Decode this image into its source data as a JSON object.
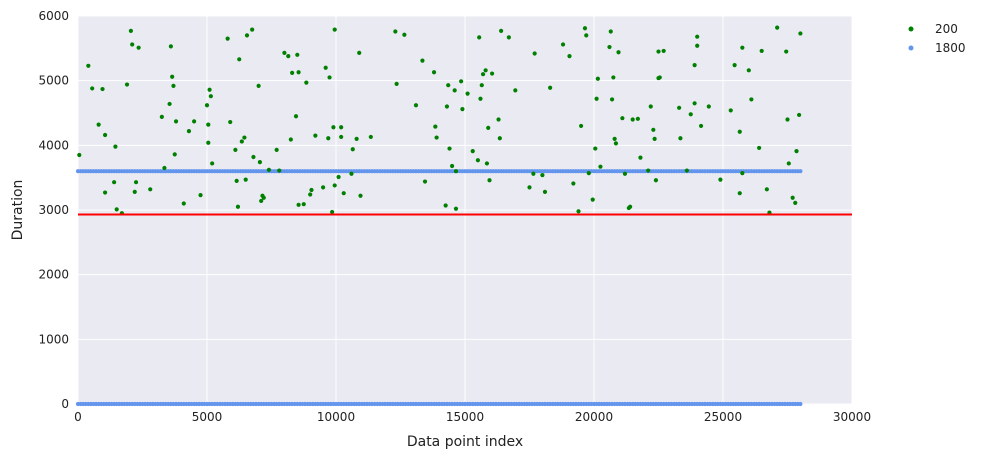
{
  "chart_data": {
    "type": "scatter",
    "xlabel": "Data point index",
    "ylabel": "Duration",
    "xlim": [
      0,
      30000
    ],
    "ylim": [
      0,
      6000
    ],
    "xticks": [
      "0",
      "5000",
      "10000",
      "15000",
      "20000",
      "25000",
      "30000"
    ],
    "yticks": [
      "0",
      "1000",
      "2000",
      "3000",
      "4000",
      "5000",
      "6000"
    ],
    "grid": true,
    "legend_position": "outside-top-right",
    "series": [
      {
        "name": "200",
        "color": "#008000",
        "points": [
          [
            50,
            3850
          ],
          [
            400,
            5230
          ],
          [
            550,
            4880
          ],
          [
            800,
            4320
          ],
          [
            950,
            4870
          ],
          [
            1050,
            4160
          ],
          [
            1050,
            3270
          ],
          [
            1400,
            3430
          ],
          [
            1450,
            3980
          ],
          [
            1500,
            3010
          ],
          [
            1700,
            2950
          ],
          [
            1900,
            4940
          ],
          [
            2050,
            5770
          ],
          [
            2100,
            5560
          ],
          [
            2200,
            3280
          ],
          [
            2250,
            3430
          ],
          [
            2350,
            5510
          ],
          [
            2800,
            3320
          ],
          [
            3250,
            4440
          ],
          [
            3350,
            3650
          ],
          [
            3550,
            4640
          ],
          [
            3600,
            5530
          ],
          [
            3650,
            5060
          ],
          [
            3700,
            4920
          ],
          [
            3800,
            4370
          ],
          [
            3750,
            3860
          ],
          [
            4100,
            3100
          ],
          [
            4300,
            4220
          ],
          [
            4500,
            4370
          ],
          [
            4750,
            3230
          ],
          [
            5000,
            4620
          ],
          [
            5050,
            4320
          ],
          [
            5100,
            4860
          ],
          [
            5150,
            4760
          ],
          [
            5200,
            3720
          ],
          [
            5050,
            4040
          ],
          [
            5800,
            5650
          ],
          [
            5900,
            4360
          ],
          [
            6100,
            3930
          ],
          [
            6150,
            3450
          ],
          [
            6200,
            3050
          ],
          [
            6250,
            5330
          ],
          [
            6350,
            4060
          ],
          [
            6450,
            4120
          ],
          [
            6550,
            5700
          ],
          [
            6500,
            3470
          ],
          [
            6750,
            5790
          ],
          [
            6800,
            3820
          ],
          [
            7000,
            4920
          ],
          [
            7050,
            3740
          ],
          [
            7100,
            3140
          ],
          [
            7200,
            3190
          ],
          [
            7150,
            3220
          ],
          [
            7400,
            3620
          ],
          [
            7700,
            3930
          ],
          [
            7800,
            3610
          ],
          [
            8000,
            5430
          ],
          [
            8150,
            5380
          ],
          [
            8250,
            4090
          ],
          [
            8300,
            5120
          ],
          [
            8450,
            4450
          ],
          [
            8500,
            5400
          ],
          [
            8550,
            5130
          ],
          [
            8550,
            3080
          ],
          [
            8750,
            3090
          ],
          [
            8850,
            4970
          ],
          [
            9000,
            3240
          ],
          [
            9050,
            3310
          ],
          [
            9200,
            4150
          ],
          [
            9500,
            3350
          ],
          [
            9600,
            5200
          ],
          [
            9700,
            4110
          ],
          [
            9750,
            5050
          ],
          [
            9850,
            2970
          ],
          [
            9950,
            5790
          ],
          [
            9950,
            3380
          ],
          [
            9900,
            4280
          ],
          [
            10100,
            3510
          ],
          [
            10200,
            4130
          ],
          [
            10200,
            4280
          ],
          [
            10300,
            3260
          ],
          [
            10600,
            3560
          ],
          [
            10650,
            3940
          ],
          [
            10800,
            4100
          ],
          [
            10900,
            5430
          ],
          [
            10950,
            3220
          ],
          [
            11350,
            4130
          ],
          [
            12300,
            5760
          ],
          [
            12350,
            4950
          ],
          [
            12650,
            5710
          ],
          [
            13100,
            4620
          ],
          [
            13350,
            5310
          ],
          [
            13450,
            3440
          ],
          [
            13800,
            5130
          ],
          [
            13850,
            4290
          ],
          [
            13900,
            4120
          ],
          [
            14250,
            3070
          ],
          [
            14300,
            4600
          ],
          [
            14350,
            4930
          ],
          [
            14400,
            3950
          ],
          [
            14500,
            3680
          ],
          [
            14650,
            3020
          ],
          [
            14600,
            4850
          ],
          [
            14650,
            3600
          ],
          [
            14850,
            4990
          ],
          [
            14900,
            4560
          ],
          [
            15100,
            4800
          ],
          [
            15300,
            3910
          ],
          [
            15500,
            3770
          ],
          [
            15550,
            5670
          ],
          [
            15600,
            4720
          ],
          [
            15650,
            4930
          ],
          [
            15700,
            5100
          ],
          [
            15800,
            5160
          ],
          [
            15850,
            3720
          ],
          [
            15900,
            4270
          ],
          [
            15950,
            3460
          ],
          [
            16050,
            5110
          ],
          [
            16300,
            4400
          ],
          [
            16350,
            4110
          ],
          [
            16400,
            5770
          ],
          [
            16700,
            5670
          ],
          [
            16950,
            4850
          ],
          [
            17500,
            3350
          ],
          [
            17650,
            3560
          ],
          [
            17700,
            5420
          ],
          [
            18000,
            3540
          ],
          [
            18100,
            3280
          ],
          [
            18300,
            4890
          ],
          [
            18800,
            5560
          ],
          [
            19050,
            5380
          ],
          [
            19200,
            3410
          ],
          [
            19400,
            2980
          ],
          [
            19500,
            4300
          ],
          [
            19650,
            5810
          ],
          [
            19700,
            5700
          ],
          [
            19800,
            3570
          ],
          [
            19950,
            3160
          ],
          [
            20050,
            3950
          ],
          [
            20100,
            4720
          ],
          [
            20150,
            5030
          ],
          [
            20250,
            3670
          ],
          [
            20600,
            5520
          ],
          [
            20650,
            5760
          ],
          [
            20700,
            4710
          ],
          [
            20750,
            5050
          ],
          [
            20800,
            4100
          ],
          [
            20850,
            4030
          ],
          [
            20950,
            5440
          ],
          [
            21100,
            4420
          ],
          [
            21200,
            3560
          ],
          [
            21350,
            3030
          ],
          [
            21400,
            3050
          ],
          [
            21500,
            4400
          ],
          [
            21700,
            4410
          ],
          [
            21800,
            3810
          ],
          [
            22100,
            3610
          ],
          [
            22200,
            4600
          ],
          [
            22300,
            4240
          ],
          [
            22350,
            4100
          ],
          [
            22400,
            3460
          ],
          [
            22500,
            5450
          ],
          [
            22500,
            5040
          ],
          [
            22550,
            5050
          ],
          [
            22700,
            5460
          ],
          [
            23300,
            4580
          ],
          [
            23350,
            4110
          ],
          [
            23600,
            3610
          ],
          [
            23750,
            4480
          ],
          [
            23900,
            4650
          ],
          [
            23900,
            5240
          ],
          [
            24000,
            5540
          ],
          [
            24000,
            5680
          ],
          [
            24150,
            4300
          ],
          [
            24450,
            4600
          ],
          [
            24900,
            3470
          ],
          [
            25300,
            4540
          ],
          [
            25450,
            5240
          ],
          [
            25650,
            4210
          ],
          [
            25650,
            3260
          ],
          [
            25750,
            5510
          ],
          [
            25750,
            3570
          ],
          [
            26000,
            5160
          ],
          [
            26100,
            4710
          ],
          [
            26400,
            3960
          ],
          [
            26500,
            5460
          ],
          [
            26700,
            3320
          ],
          [
            26800,
            2960
          ],
          [
            27100,
            5820
          ],
          [
            27450,
            5450
          ],
          [
            27500,
            4400
          ],
          [
            27550,
            3720
          ],
          [
            27700,
            3190
          ],
          [
            27800,
            3110
          ],
          [
            27850,
            3910
          ],
          [
            27950,
            4470
          ],
          [
            28000,
            5730
          ]
        ]
      },
      {
        "name": "1800",
        "color": "#6495ED",
        "bands": [
          {
            "y": 3600,
            "x_start": 0,
            "x_end": 28000
          },
          {
            "y": 0,
            "x_start": 0,
            "x_end": 28000
          }
        ]
      }
    ],
    "reference_lines": [
      {
        "orientation": "horizontal",
        "y": 2930,
        "color": "#ff0000"
      }
    ]
  }
}
